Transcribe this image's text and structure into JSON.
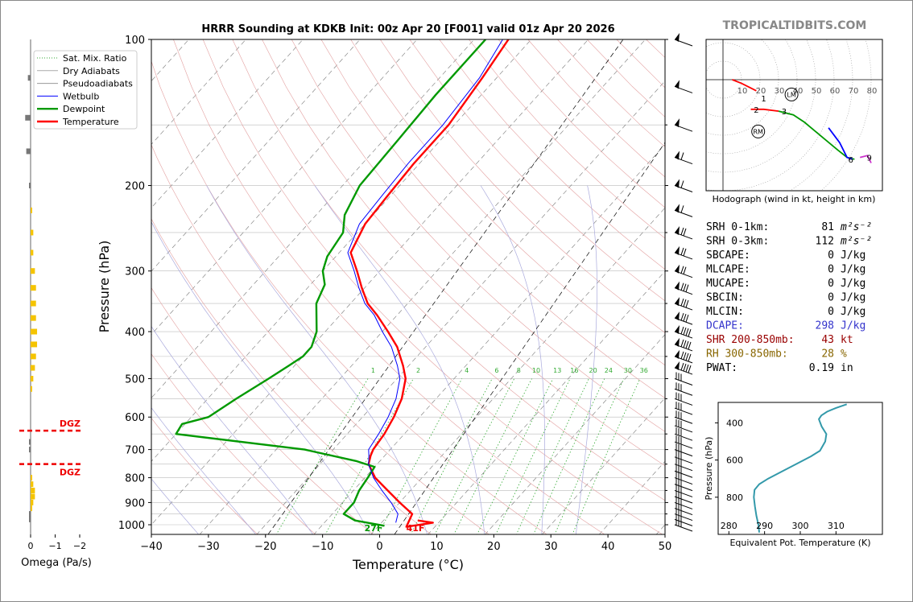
{
  "title": "HRRR Sounding at KDKB Init: 00z Apr 20 [F001] valid 01z Apr 20 2026",
  "watermark": "TROPICALTIDBITS.COM",
  "colors": {
    "temperature": "#ff0000",
    "dewpoint": "#009900",
    "wetbulb": "#0000ff",
    "dry_adiabat": "#e3a0a0",
    "moist_adiabat": "#aaaadd",
    "mixing_ratio": "#33aa33",
    "isotherm": "#777777",
    "dgz": "#ee0000",
    "omega": "#f5c400",
    "srh": "#000000",
    "dcape": "#3333cc",
    "shr": "#990000",
    "rh": "#886600",
    "theta_e": "#3399aa"
  },
  "legend": [
    {
      "label": "Sat. Mix. Ratio",
      "key": "mixing_ratio",
      "style": "dotted"
    },
    {
      "label": "Dry Adiabats",
      "key": "dry_adiabat_legend",
      "style": "solid"
    },
    {
      "label": "Pseudoadiabats",
      "key": "pseudo_legend",
      "style": "solid"
    },
    {
      "label": "Wetbulb",
      "key": "wetbulb",
      "style": "solid"
    },
    {
      "label": "Dewpoint",
      "key": "dewpoint",
      "style": "thick"
    },
    {
      "label": "Temperature",
      "key": "temperature",
      "style": "thick"
    }
  ],
  "labels": {
    "omega_label": "Omega (Pa/s)",
    "dgz": "DGZ",
    "sfc_dewpoint": "27F",
    "sfc_temp": "41F",
    "hodo_caption": "Hodograph (wind in kt, height in km)",
    "theta_xlabel": "Equivalent Pot. Temperature (K)",
    "theta_ylabel": "Pressure (hPa)"
  },
  "stats": [
    {
      "label": "SRH 0-1km:",
      "value": "81",
      "unit": "m²s⁻²",
      "color": "srh"
    },
    {
      "label": "SRH 0-3km:",
      "value": "112",
      "unit": "m²s⁻²",
      "color": "srh"
    },
    {
      "label": "SBCAPE:",
      "value": "0",
      "unit": "J/kg",
      "color": "srh"
    },
    {
      "label": "MLCAPE:",
      "value": "0",
      "unit": "J/kg",
      "color": "srh"
    },
    {
      "label": "MUCAPE:",
      "value": "0",
      "unit": "J/kg",
      "color": "srh"
    },
    {
      "label": "SBCIN:",
      "value": "0",
      "unit": "J/kg",
      "color": "srh"
    },
    {
      "label": "MLCIN:",
      "value": "0",
      "unit": "J/kg",
      "color": "srh"
    },
    {
      "label": "DCAPE:",
      "value": "298",
      "unit": "J/kg",
      "color": "dcape"
    },
    {
      "label": "SHR 200-850mb:",
      "value": "43",
      "unit": "kt",
      "color": "shr"
    },
    {
      "label": "RH 300-850mb:",
      "value": "28",
      "unit": "%",
      "color": "rh"
    },
    {
      "label": "PWAT:",
      "value": "0.19",
      "unit": "in",
      "color": "srh"
    }
  ],
  "chart_data": [
    {
      "type": "line",
      "name": "skew-t",
      "xlabel": "Temperature (°C)",
      "ylabel": "Pressure (hPa)",
      "xlim": [
        -40,
        50
      ],
      "ylim": [
        1050,
        100
      ],
      "y_scale": "log",
      "x_ticks": [
        -40,
        -30,
        -20,
        -10,
        0,
        10,
        20,
        30,
        40,
        50
      ],
      "y_ticks": [
        100,
        200,
        300,
        400,
        500,
        600,
        700,
        800,
        900,
        1000
      ],
      "mixing_ratio_labels": [
        "1",
        "2",
        "4",
        "6",
        "8",
        "10",
        "13",
        "16",
        "20",
        "24",
        "30",
        "36"
      ],
      "series": [
        {
          "name": "Temperature",
          "color_key": "temperature",
          "p": [
            980,
            990,
            1010,
            950,
            900,
            850,
            800,
            750,
            720,
            700,
            650,
            600,
            550,
            500,
            470,
            430,
            400,
            370,
            350,
            325,
            300,
            275,
            240,
            210,
            180,
            150,
            120,
            100
          ],
          "t": [
            6,
            9,
            5,
            4,
            0,
            -4,
            -8.2,
            -11.5,
            -12.5,
            -13,
            -13.5,
            -14.5,
            -16,
            -18.5,
            -21,
            -25,
            -29,
            -33.5,
            -37,
            -40.5,
            -44,
            -48,
            -50,
            -50.5,
            -51,
            -51,
            -52.5,
            -54
          ]
        },
        {
          "name": "Dewpoint",
          "color_key": "dewpoint",
          "p": [
            1005,
            980,
            950,
            900,
            850,
            800,
            760,
            740,
            700,
            650,
            620,
            600,
            550,
            500,
            470,
            450,
            430,
            400,
            350,
            320,
            300,
            280,
            250,
            230,
            200,
            160,
            130,
            100
          ],
          "t": [
            1,
            -5,
            -8,
            -8,
            -9,
            -9.5,
            -10,
            -14,
            -25,
            -50,
            -50.5,
            -47,
            -45,
            -42.5,
            -41,
            -40,
            -40,
            -41.5,
            -46,
            -47.5,
            -50,
            -51.5,
            -52.5,
            -55,
            -57,
            -57.5,
            -58,
            -58
          ]
        },
        {
          "name": "Wetbulb",
          "color_key": "wetbulb",
          "p": [
            990,
            950,
            900,
            850,
            800,
            750,
            720,
            700,
            650,
            600,
            550,
            500,
            470,
            430,
            400,
            370,
            350,
            325,
            300,
            275,
            240,
            210,
            180,
            150,
            120,
            100
          ],
          "t": [
            2.5,
            1.5,
            -1.5,
            -5,
            -8.5,
            -11.5,
            -12.8,
            -13.8,
            -14.5,
            -15.5,
            -17,
            -19.5,
            -22,
            -26,
            -30,
            -34,
            -37.5,
            -41,
            -44.5,
            -48.5,
            -51,
            -51.5,
            -52,
            -52,
            -53,
            -55
          ]
        }
      ]
    },
    {
      "type": "line",
      "name": "hodograph",
      "rings": [
        10,
        20,
        30,
        40,
        50,
        60,
        70,
        80
      ],
      "height_labels": [
        {
          "label": "1",
          "u": 22,
          "v": -10
        },
        {
          "label": "2",
          "u": 18,
          "v": -16
        },
        {
          "label": "3",
          "u": 33,
          "v": -17
        },
        {
          "label": "6",
          "u": 69,
          "v": -43
        },
        {
          "label": "9",
          "u": 79,
          "v": -42
        }
      ],
      "markers": [
        {
          "label": "LM",
          "u": 37,
          "v": -8
        },
        {
          "label": "RM",
          "u": 19,
          "v": -28
        }
      ],
      "segments": [
        {
          "color_key": "temperature",
          "points": [
            [
              5,
              0
            ],
            [
              10,
              -2
            ],
            [
              14,
              -4
            ],
            [
              18,
              -6
            ]
          ]
        },
        {
          "color_key": "temperature",
          "points": [
            [
              15,
              -16
            ],
            [
              22,
              -16
            ],
            [
              30,
              -17
            ]
          ]
        },
        {
          "color_key": "dewpoint",
          "points": [
            [
              30,
              -17
            ],
            [
              38,
              -19
            ],
            [
              44,
              -23
            ],
            [
              50,
              -28
            ],
            [
              56,
              -33
            ],
            [
              62,
              -38
            ],
            [
              67,
              -42
            ],
            [
              71,
              -43
            ]
          ]
        },
        {
          "color_key": "wetbulb",
          "points": [
            [
              57,
              -26
            ],
            [
              63,
              -34
            ],
            [
              67,
              -42
            ],
            [
              70,
              -43
            ]
          ]
        },
        {
          "color_key": "magenta",
          "points": [
            [
              74,
              -42
            ],
            [
              78,
              -41
            ],
            [
              80,
              -45
            ]
          ]
        }
      ]
    },
    {
      "type": "line",
      "name": "theta-e",
      "xlabel": "Equivalent Pot. Temperature (K)",
      "ylabel": "Pressure (hPa)",
      "xlim": [
        277,
        323
      ],
      "x_ticks": [
        280,
        290,
        300,
        310
      ],
      "y_ticks": [
        400,
        600,
        800
      ],
      "ylim": [
        1000,
        290
      ],
      "series": [
        {
          "name": "theta_e",
          "color_key": "theta_e",
          "p": [
            990,
            950,
            900,
            850,
            800,
            760,
            730,
            700,
            660,
            620,
            580,
            550,
            500,
            460,
            420,
            400,
            380,
            360,
            340,
            320,
            300
          ],
          "theta": [
            288.5,
            288.3,
            287.7,
            287.3,
            287,
            287.2,
            288.5,
            291,
            295,
            299,
            303,
            305.5,
            307,
            307.3,
            306,
            305.6,
            305.2,
            305.9,
            307.5,
            310,
            313
          ]
        }
      ]
    },
    {
      "type": "bar",
      "name": "omega",
      "xlabel": "Omega (Pa/s)",
      "x_ticks": [
        0,
        -1,
        -2
      ],
      "dgz_pressures": [
        640,
        750
      ],
      "bars": [
        {
          "p": 120,
          "v": 0.05,
          "color": "gray"
        },
        {
          "p": 145,
          "v": 0.1,
          "color": "gray"
        },
        {
          "p": 170,
          "v": 0.08,
          "color": "gray"
        },
        {
          "p": 200,
          "v": 0.02,
          "color": "gray"
        },
        {
          "p": 225,
          "v": -0.03,
          "color": "omega"
        },
        {
          "p": 250,
          "v": -0.05,
          "color": "omega"
        },
        {
          "p": 275,
          "v": -0.05,
          "color": "omega"
        },
        {
          "p": 300,
          "v": -0.08,
          "color": "omega"
        },
        {
          "p": 325,
          "v": -0.1,
          "color": "omega"
        },
        {
          "p": 350,
          "v": -0.1,
          "color": "omega"
        },
        {
          "p": 375,
          "v": -0.1,
          "color": "omega"
        },
        {
          "p": 400,
          "v": -0.12,
          "color": "omega"
        },
        {
          "p": 425,
          "v": -0.12,
          "color": "omega"
        },
        {
          "p": 450,
          "v": -0.1,
          "color": "omega"
        },
        {
          "p": 475,
          "v": -0.08,
          "color": "omega"
        },
        {
          "p": 500,
          "v": -0.05,
          "color": "omega"
        },
        {
          "p": 525,
          "v": -0.02,
          "color": "omega"
        },
        {
          "p": 675,
          "v": 0.02,
          "color": "gray"
        },
        {
          "p": 700,
          "v": 0.02,
          "color": "gray"
        },
        {
          "p": 800,
          "v": -0.03,
          "color": "omega"
        },
        {
          "p": 825,
          "v": -0.05,
          "color": "omega"
        },
        {
          "p": 850,
          "v": -0.08,
          "color": "omega"
        },
        {
          "p": 875,
          "v": -0.08,
          "color": "omega"
        },
        {
          "p": 900,
          "v": -0.05,
          "color": "omega"
        },
        {
          "p": 925,
          "v": -0.02,
          "color": "omega"
        },
        {
          "p": 950,
          "v": 0.02,
          "color": "gray"
        },
        {
          "p": 975,
          "v": 0.02,
          "color": "gray"
        }
      ]
    }
  ]
}
